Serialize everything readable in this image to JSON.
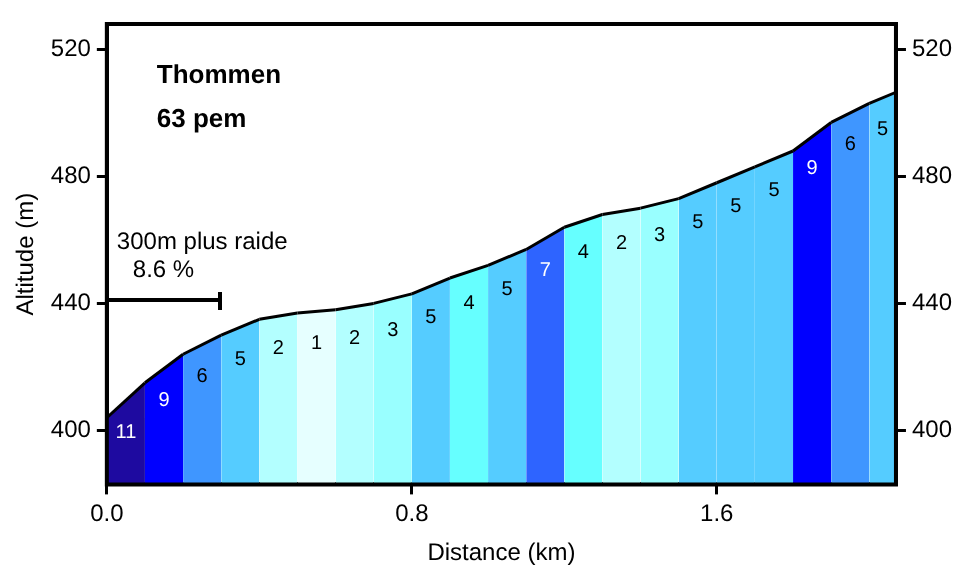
{
  "chart_data": {
    "type": "area",
    "title": "Thommen",
    "subtitle": "63 pem",
    "xlabel": "Distance (km)",
    "ylabel": "Altitude (m)",
    "series": [
      {
        "color": "#1e0aa0",
        "x": [
          0,
          0.1
        ],
        "values": [
          404,
          415
        ]
      },
      {
        "color": "#0000ff",
        "x": [
          0.1,
          0.2
        ],
        "values": [
          415,
          424
        ]
      },
      {
        "color": "#3f96ff",
        "x": [
          0.2,
          0.3
        ],
        "values": [
          424,
          430
        ]
      },
      {
        "color": "#55ccff",
        "x": [
          0.3,
          0.4
        ],
        "values": [
          430,
          435
        ]
      },
      {
        "color": "#b3ffff",
        "x": [
          0.4,
          0.5
        ],
        "values": [
          435,
          437
        ]
      },
      {
        "color": "#e6ffff",
        "x": [
          0.5,
          0.6
        ],
        "values": [
          437,
          438
        ]
      },
      {
        "color": "#b3ffff",
        "x": [
          0.6,
          0.7
        ],
        "values": [
          438,
          440
        ]
      },
      {
        "color": "#99ffff",
        "x": [
          0.7,
          0.8
        ],
        "values": [
          440,
          443
        ]
      },
      {
        "color": "#55ccff",
        "x": [
          0.8,
          0.9
        ],
        "values": [
          443,
          448
        ]
      },
      {
        "color": "#66ffff",
        "x": [
          0.9,
          1.0
        ],
        "values": [
          448,
          452
        ]
      },
      {
        "color": "#55ccff",
        "x": [
          1.0,
          1.1
        ],
        "values": [
          452,
          457
        ]
      },
      {
        "color": "#2e64ff",
        "x": [
          1.1,
          1.2
        ],
        "values": [
          457,
          464
        ]
      },
      {
        "color": "#66ffff",
        "x": [
          1.2,
          1.3
        ],
        "values": [
          464,
          468
        ]
      },
      {
        "color": "#b3ffff",
        "x": [
          1.3,
          1.4
        ],
        "values": [
          468,
          470
        ]
      },
      {
        "color": "#99ffff",
        "x": [
          1.4,
          1.5
        ],
        "values": [
          470,
          473
        ]
      },
      {
        "color": "#55ccff",
        "x": [
          1.5,
          1.6
        ],
        "values": [
          473,
          478
        ]
      },
      {
        "color": "#55ccff",
        "x": [
          1.6,
          1.7
        ],
        "values": [
          478,
          483
        ]
      },
      {
        "color": "#55ccff",
        "x": [
          1.7,
          1.8
        ],
        "values": [
          483,
          488
        ]
      },
      {
        "color": "#0000ff",
        "x": [
          1.8,
          1.9
        ],
        "values": [
          488,
          497
        ]
      },
      {
        "color": "#3f96ff",
        "x": [
          1.9,
          2.0
        ],
        "values": [
          497,
          503
        ]
      },
      {
        "color": "#55ccff",
        "x": [
          2.0,
          2.07
        ],
        "values": [
          503,
          506.5
        ]
      }
    ],
    "xlim": [
      0,
      2.07
    ],
    "xticks": [
      {
        "value": 0,
        "label": "0.0"
      },
      {
        "value": 0.8,
        "label": "0.8"
      },
      {
        "value": 1.6,
        "label": "1.6"
      }
    ],
    "ylim": [
      383,
      528
    ],
    "yticks": [
      400,
      440,
      480,
      520
    ],
    "y2lim": [
      383,
      528
    ],
    "y2ticks": [
      400,
      440,
      480,
      520
    ],
    "legend": false,
    "grid": false,
    "annotations": [
      "300m plus raide\n8.6 %",
      "11",
      "9",
      "6",
      "5",
      "2",
      "1",
      "2",
      "3",
      "5",
      "4",
      "5",
      "7",
      "4",
      "2",
      "3",
      "5",
      "5",
      "5",
      "9",
      "6",
      "5"
    ]
  }
}
